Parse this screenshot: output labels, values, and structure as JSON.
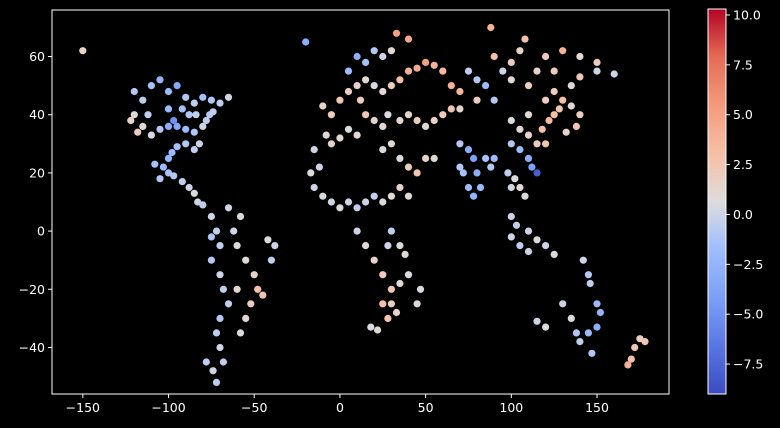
{
  "chart_data": {
    "type": "scatter",
    "title": "",
    "xlabel": "",
    "ylabel": "",
    "xlim": [
      -168,
      192
    ],
    "ylim": [
      -56,
      76
    ],
    "xticks": [
      -150,
      -100,
      -50,
      0,
      50,
      100,
      150
    ],
    "yticks": [
      -40,
      -20,
      0,
      20,
      40,
      60
    ],
    "xtick_labels": [
      "−150",
      "−100",
      "−50",
      "0",
      "50",
      "100",
      "150"
    ],
    "ytick_labels": [
      "−40",
      "−20",
      "0",
      "20",
      "40",
      "60"
    ],
    "grid": false,
    "background": "#000000",
    "colormap": "coolwarm",
    "colorbar": {
      "range": [
        -9,
        10.3
      ],
      "ticks": [
        -7.5,
        -5.0,
        -2.5,
        0.0,
        2.5,
        5.0,
        7.5,
        10.0
      ],
      "tick_labels": [
        "−7.5",
        "−5.0",
        "−2.5",
        "0.0",
        "2.5",
        "5.0",
        "7.5",
        "10.0"
      ]
    },
    "points_description": "Approx. values: [lon, lat, value]",
    "points": [
      [
        -150,
        62,
        1.5
      ],
      [
        -20,
        65,
        -3.0
      ],
      [
        160,
        54,
        0.0
      ],
      [
        88,
        70,
        4.0
      ],
      [
        33,
        68,
        5.0
      ],
      [
        40,
        66,
        4.5
      ],
      [
        -120,
        48,
        -1.0
      ],
      [
        -115,
        45,
        -0.5
      ],
      [
        -110,
        50,
        -1.5
      ],
      [
        -105,
        52,
        -2.5
      ],
      [
        -100,
        48,
        -2.0
      ],
      [
        -95,
        50,
        -3.5
      ],
      [
        -90,
        46,
        -1.0
      ],
      [
        -85,
        44,
        -0.5
      ],
      [
        -80,
        46,
        -1.5
      ],
      [
        -75,
        45,
        -1.0
      ],
      [
        -70,
        44,
        -0.5
      ],
      [
        -65,
        46,
        0.0
      ],
      [
        -122,
        38,
        1.5
      ],
      [
        -118,
        34,
        2.0
      ],
      [
        -115,
        36,
        1.0
      ],
      [
        -110,
        33,
        0.5
      ],
      [
        -105,
        35,
        -1.0
      ],
      [
        -100,
        36,
        -3.0
      ],
      [
        -97,
        38,
        -5.0
      ],
      [
        -95,
        36,
        -3.5
      ],
      [
        -90,
        35,
        -2.0
      ],
      [
        -85,
        34,
        -1.0
      ],
      [
        -80,
        36,
        0.0
      ],
      [
        -78,
        38,
        -0.5
      ],
      [
        -76,
        40,
        -1.0
      ],
      [
        -74,
        41,
        -0.5
      ],
      [
        -120,
        40,
        1.0
      ],
      [
        -112,
        40,
        -0.5
      ],
      [
        -100,
        42,
        -2.0
      ],
      [
        -92,
        42,
        -1.5
      ],
      [
        -88,
        40,
        -1.0
      ],
      [
        -84,
        40,
        -0.5
      ],
      [
        -82,
        30,
        0.0
      ],
      [
        -85,
        28,
        -0.5
      ],
      [
        -90,
        30,
        -1.0
      ],
      [
        -95,
        29,
        -1.5
      ],
      [
        -98,
        27,
        -2.0
      ],
      [
        -100,
        25,
        -2.5
      ],
      [
        -103,
        22,
        -2.0
      ],
      [
        -100,
        20,
        -1.5
      ],
      [
        -97,
        19,
        -1.0
      ],
      [
        -92,
        17,
        -0.5
      ],
      [
        -88,
        15,
        0.0
      ],
      [
        -85,
        13,
        0.5
      ],
      [
        -83,
        10,
        0.0
      ],
      [
        -80,
        9,
        -0.5
      ],
      [
        -105,
        18,
        -1.0
      ],
      [
        -108,
        23,
        -1.5
      ],
      [
        -75,
        5,
        0.0
      ],
      [
        -72,
        0,
        -0.5
      ],
      [
        -70,
        -5,
        -0.5
      ],
      [
        -75,
        -10,
        -1.0
      ],
      [
        -70,
        -15,
        0.0
      ],
      [
        -68,
        -20,
        -0.5
      ],
      [
        -65,
        -25,
        -0.5
      ],
      [
        -70,
        -30,
        -1.0
      ],
      [
        -72,
        -35,
        -0.5
      ],
      [
        -70,
        -40,
        0.0
      ],
      [
        -68,
        -45,
        -0.5
      ],
      [
        -72,
        -52,
        -0.5
      ],
      [
        -60,
        -5,
        0.5
      ],
      [
        -55,
        -10,
        1.0
      ],
      [
        -50,
        -15,
        1.5
      ],
      [
        -48,
        -20,
        3.0
      ],
      [
        -45,
        -22,
        2.5
      ],
      [
        -52,
        -25,
        2.0
      ],
      [
        -55,
        -30,
        1.0
      ],
      [
        -58,
        -35,
        0.5
      ],
      [
        -60,
        -20,
        1.0
      ],
      [
        -40,
        -10,
        -0.5
      ],
      [
        -38,
        -5,
        0.0
      ],
      [
        -42,
        -3,
        0.5
      ],
      [
        -62,
        0,
        0.0
      ],
      [
        -58,
        5,
        0.5
      ],
      [
        -65,
        8,
        0.0
      ],
      [
        -75,
        -2,
        -1.0
      ],
      [
        -78,
        -45,
        -0.5
      ],
      [
        -74,
        -48,
        0.0
      ],
      [
        -10,
        43,
        1.5
      ],
      [
        -5,
        40,
        2.0
      ],
      [
        0,
        45,
        2.5
      ],
      [
        5,
        48,
        2.0
      ],
      [
        10,
        50,
        1.5
      ],
      [
        15,
        52,
        1.0
      ],
      [
        20,
        50,
        0.5
      ],
      [
        25,
        48,
        1.0
      ],
      [
        30,
        50,
        2.0
      ],
      [
        35,
        52,
        3.0
      ],
      [
        40,
        55,
        4.0
      ],
      [
        45,
        56,
        4.5
      ],
      [
        50,
        58,
        5.0
      ],
      [
        55,
        57,
        4.0
      ],
      [
        60,
        55,
        3.5
      ],
      [
        5,
        55,
        -2.0
      ],
      [
        10,
        60,
        -3.0
      ],
      [
        15,
        58,
        -1.5
      ],
      [
        20,
        62,
        -1.0
      ],
      [
        25,
        60,
        0.0
      ],
      [
        30,
        62,
        1.0
      ],
      [
        12,
        45,
        2.0
      ],
      [
        15,
        40,
        2.5
      ],
      [
        20,
        38,
        1.5
      ],
      [
        25,
        36,
        1.0
      ],
      [
        28,
        40,
        0.5
      ],
      [
        35,
        38,
        1.0
      ],
      [
        40,
        40,
        1.5
      ],
      [
        45,
        38,
        2.0
      ],
      [
        50,
        36,
        1.0
      ],
      [
        55,
        38,
        1.5
      ],
      [
        60,
        40,
        2.0
      ],
      [
        65,
        42,
        2.5
      ],
      [
        70,
        42,
        1.5
      ],
      [
        -8,
        33,
        1.0
      ],
      [
        -5,
        30,
        1.5
      ],
      [
        0,
        32,
        1.0
      ],
      [
        5,
        35,
        0.5
      ],
      [
        10,
        33,
        1.0
      ],
      [
        25,
        28,
        0.5
      ],
      [
        30,
        30,
        1.0
      ],
      [
        35,
        25,
        0.5
      ],
      [
        40,
        22,
        2.0
      ],
      [
        45,
        20,
        2.5
      ],
      [
        50,
        25,
        1.5
      ],
      [
        55,
        25,
        1.0
      ],
      [
        -15,
        15,
        0.0
      ],
      [
        -10,
        12,
        0.5
      ],
      [
        -5,
        10,
        0.0
      ],
      [
        0,
        8,
        0.5
      ],
      [
        5,
        10,
        0.0
      ],
      [
        10,
        8,
        -0.5
      ],
      [
        15,
        10,
        0.0
      ],
      [
        20,
        12,
        -0.5
      ],
      [
        25,
        10,
        0.5
      ],
      [
        30,
        12,
        1.0
      ],
      [
        35,
        15,
        1.5
      ],
      [
        40,
        12,
        1.0
      ],
      [
        -15,
        28,
        0.0
      ],
      [
        -17,
        20,
        0.5
      ],
      [
        -12,
        22,
        0.0
      ],
      [
        10,
        0,
        0.0
      ],
      [
        15,
        -5,
        1.0
      ],
      [
        20,
        -10,
        1.5
      ],
      [
        25,
        -15,
        2.0
      ],
      [
        30,
        -20,
        2.5
      ],
      [
        25,
        -25,
        3.0
      ],
      [
        28,
        -30,
        2.5
      ],
      [
        22,
        -34,
        1.0
      ],
      [
        18,
        -33,
        0.5
      ],
      [
        35,
        -5,
        0.5
      ],
      [
        38,
        -8,
        1.0
      ],
      [
        40,
        -15,
        0.5
      ],
      [
        35,
        -18,
        1.0
      ],
      [
        30,
        -25,
        2.0
      ],
      [
        33,
        -28,
        1.5
      ],
      [
        47,
        -20,
        0.5
      ],
      [
        45,
        -25,
        1.0
      ],
      [
        28,
        -5,
        0.0
      ],
      [
        30,
        0,
        -0.5
      ],
      [
        70,
        30,
        -1.0
      ],
      [
        75,
        28,
        -3.0
      ],
      [
        78,
        25,
        -4.0
      ],
      [
        80,
        20,
        -3.0
      ],
      [
        82,
        15,
        -2.0
      ],
      [
        78,
        12,
        -2.5
      ],
      [
        75,
        15,
        -2.0
      ],
      [
        72,
        20,
        -1.5
      ],
      [
        70,
        22,
        -1.0
      ],
      [
        85,
        25,
        -1.5
      ],
      [
        88,
        22,
        -1.0
      ],
      [
        90,
        25,
        -2.0
      ],
      [
        100,
        15,
        0.0
      ],
      [
        98,
        20,
        -0.5
      ],
      [
        102,
        18,
        0.5
      ],
      [
        105,
        15,
        1.0
      ],
      [
        108,
        12,
        0.5
      ],
      [
        100,
        5,
        0.0
      ],
      [
        103,
        2,
        -0.5
      ],
      [
        110,
        0,
        0.0
      ],
      [
        115,
        -3,
        0.5
      ],
      [
        120,
        -5,
        0.0
      ],
      [
        125,
        -8,
        0.5
      ],
      [
        110,
        -7,
        0.0
      ],
      [
        105,
        -5,
        -0.5
      ],
      [
        100,
        -2,
        0.0
      ],
      [
        112,
        22,
        -4.0
      ],
      [
        115,
        20,
        -8.0
      ],
      [
        110,
        25,
        -3.0
      ],
      [
        105,
        28,
        -2.0
      ],
      [
        100,
        30,
        -1.0
      ],
      [
        105,
        35,
        1.0
      ],
      [
        110,
        33,
        1.5
      ],
      [
        115,
        30,
        2.0
      ],
      [
        120,
        30,
        2.5
      ],
      [
        118,
        35,
        3.0
      ],
      [
        122,
        38,
        3.5
      ],
      [
        125,
        40,
        3.0
      ],
      [
        128,
        42,
        2.5
      ],
      [
        130,
        45,
        3.0
      ],
      [
        125,
        48,
        2.0
      ],
      [
        135,
        43,
        1.0
      ],
      [
        140,
        40,
        2.0
      ],
      [
        138,
        36,
        2.5
      ],
      [
        132,
        34,
        1.5
      ],
      [
        120,
        45,
        2.0
      ],
      [
        110,
        40,
        1.0
      ],
      [
        100,
        38,
        0.5
      ],
      [
        90,
        45,
        -1.0
      ],
      [
        85,
        50,
        -2.0
      ],
      [
        80,
        52,
        -1.0
      ],
      [
        75,
        55,
        -0.5
      ],
      [
        95,
        55,
        0.0
      ],
      [
        100,
        52,
        1.0
      ],
      [
        110,
        50,
        2.0
      ],
      [
        115,
        55,
        1.5
      ],
      [
        125,
        55,
        2.0
      ],
      [
        135,
        50,
        1.0
      ],
      [
        140,
        53,
        2.5
      ],
      [
        150,
        55,
        0.0
      ],
      [
        65,
        50,
        4.0
      ],
      [
        70,
        48,
        3.5
      ],
      [
        80,
        45,
        2.0
      ],
      [
        90,
        60,
        3.0
      ],
      [
        100,
        58,
        2.0
      ],
      [
        105,
        62,
        1.5
      ],
      [
        120,
        60,
        2.0
      ],
      [
        130,
        62,
        4.0
      ],
      [
        140,
        60,
        1.0
      ],
      [
        150,
        58,
        2.0
      ],
      [
        108,
        66,
        3.0
      ],
      [
        145,
        -15,
        -1.0
      ],
      [
        150,
        -25,
        -2.0
      ],
      [
        152,
        -28,
        -2.5
      ],
      [
        150,
        -33,
        -3.0
      ],
      [
        145,
        -35,
        -2.0
      ],
      [
        138,
        -35,
        -1.0
      ],
      [
        140,
        -38,
        -0.5
      ],
      [
        147,
        -42,
        -1.0
      ],
      [
        115,
        -31,
        0.0
      ],
      [
        120,
        -33,
        0.5
      ],
      [
        130,
        -25,
        0.0
      ],
      [
        135,
        -30,
        0.5
      ],
      [
        175,
        -37,
        2.0
      ],
      [
        172,
        -40,
        2.5
      ],
      [
        170,
        -44,
        3.0
      ],
      [
        168,
        -46,
        4.0
      ],
      [
        178,
        -38,
        2.5
      ],
      [
        146,
        -18,
        -0.5
      ],
      [
        142,
        -10,
        0.0
      ]
    ]
  }
}
